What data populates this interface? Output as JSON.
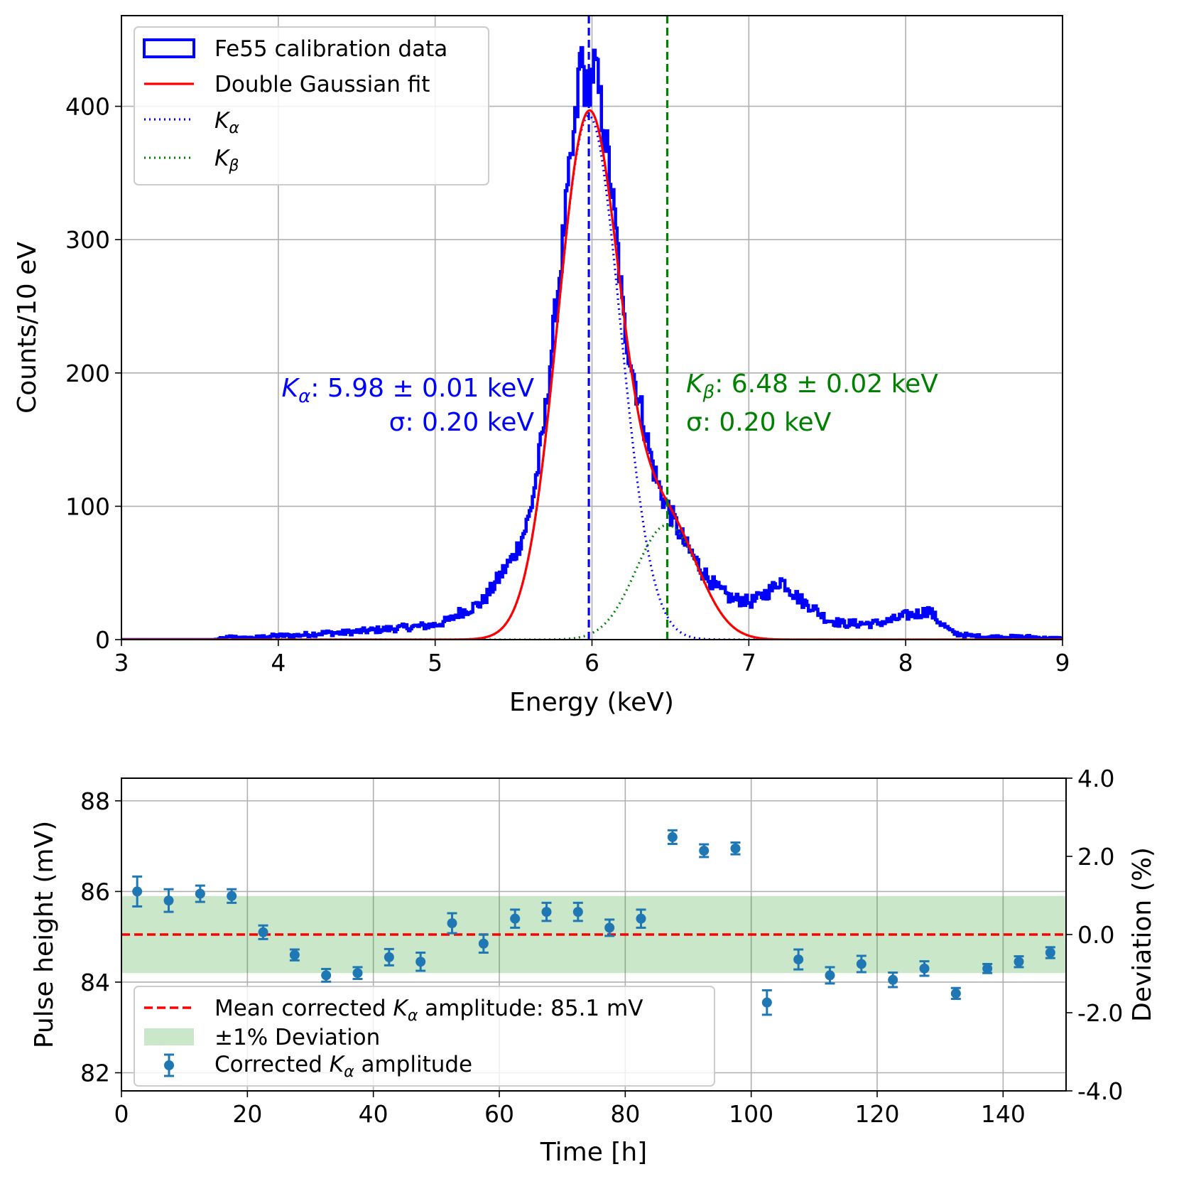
{
  "chart_data": [
    {
      "type": "histogram",
      "title": "",
      "xlabel": "Energy (keV)",
      "ylabel": "Counts/10 eV",
      "xlim": [
        3,
        9
      ],
      "ylim": [
        0,
        468
      ],
      "xticks": [
        3,
        4,
        5,
        6,
        7,
        8,
        9
      ],
      "yticks": [
        0,
        100,
        200,
        300,
        400
      ],
      "grid": true,
      "legend": {
        "position": "top-left",
        "entries": [
          {
            "label": "Fe55 calibration data",
            "style": "box",
            "color": "#0000ff"
          },
          {
            "label": "Double Gaussian fit",
            "style": "solid",
            "color": "#ff0000"
          },
          {
            "label": "K",
            "sub": "α",
            "style": "dotted",
            "color": "#0000ff"
          },
          {
            "label": "K",
            "sub": "β",
            "style": "dotted",
            "color": "#008000"
          }
        ]
      },
      "histogram_envelope": [
        [
          3.6,
          0
        ],
        [
          3.7,
          2
        ],
        [
          3.8,
          1
        ],
        [
          3.9,
          2
        ],
        [
          4.0,
          3
        ],
        [
          4.1,
          3
        ],
        [
          4.2,
          4
        ],
        [
          4.3,
          5
        ],
        [
          4.4,
          5
        ],
        [
          4.5,
          6
        ],
        [
          4.6,
          7
        ],
        [
          4.7,
          8
        ],
        [
          4.8,
          9
        ],
        [
          4.9,
          10
        ],
        [
          5.0,
          11
        ],
        [
          5.1,
          15
        ],
        [
          5.15,
          20
        ],
        [
          5.2,
          22
        ],
        [
          5.25,
          25
        ],
        [
          5.3,
          28
        ],
        [
          5.35,
          36
        ],
        [
          5.4,
          45
        ],
        [
          5.45,
          54
        ],
        [
          5.5,
          62
        ],
        [
          5.55,
          75
        ],
        [
          5.6,
          92
        ],
        [
          5.65,
          125
        ],
        [
          5.7,
          165
        ],
        [
          5.75,
          225
        ],
        [
          5.8,
          280
        ],
        [
          5.85,
          340
        ],
        [
          5.9,
          390
        ],
        [
          5.93,
          445
        ],
        [
          5.96,
          410
        ],
        [
          5.99,
          420
        ],
        [
          6.02,
          432
        ],
        [
          6.05,
          405
        ],
        [
          6.08,
          380
        ],
        [
          6.11,
          355
        ],
        [
          6.14,
          320
        ],
        [
          6.17,
          285
        ],
        [
          6.2,
          240
        ],
        [
          6.24,
          215
        ],
        [
          6.28,
          190
        ],
        [
          6.32,
          170
        ],
        [
          6.36,
          145
        ],
        [
          6.4,
          125
        ],
        [
          6.44,
          110
        ],
        [
          6.48,
          100
        ],
        [
          6.52,
          90
        ],
        [
          6.56,
          80
        ],
        [
          6.6,
          70
        ],
        [
          6.65,
          62
        ],
        [
          6.7,
          52
        ],
        [
          6.75,
          45
        ],
        [
          6.8,
          38
        ],
        [
          6.85,
          34
        ],
        [
          6.9,
          30
        ],
        [
          6.95,
          30
        ],
        [
          7.0,
          28
        ],
        [
          7.05,
          30
        ],
        [
          7.1,
          34
        ],
        [
          7.15,
          38
        ],
        [
          7.2,
          45
        ],
        [
          7.25,
          40
        ],
        [
          7.3,
          33
        ],
        [
          7.35,
          28
        ],
        [
          7.4,
          25
        ],
        [
          7.45,
          20
        ],
        [
          7.5,
          15
        ],
        [
          7.6,
          12
        ],
        [
          7.7,
          12
        ],
        [
          7.8,
          12
        ],
        [
          7.9,
          14
        ],
        [
          8.0,
          18
        ],
        [
          8.1,
          20
        ],
        [
          8.15,
          22
        ],
        [
          8.2,
          15
        ],
        [
          8.3,
          5
        ],
        [
          8.4,
          3
        ],
        [
          8.5,
          2
        ],
        [
          8.6,
          2
        ],
        [
          8.7,
          2
        ],
        [
          8.8,
          2
        ],
        [
          8.9,
          1
        ],
        [
          9.0,
          1
        ]
      ],
      "fits": [
        {
          "name": "Kα",
          "mean": 5.98,
          "mean_err": 0.01,
          "sigma": 0.2,
          "amplitude": 393
        },
        {
          "name": "Kβ",
          "mean": 6.48,
          "mean_err": 0.02,
          "sigma": 0.2,
          "amplitude": 86
        }
      ],
      "vlines": [
        {
          "x": 5.98,
          "color": "#0000ff",
          "style": "dashed"
        },
        {
          "x": 6.48,
          "color": "#008000",
          "style": "dashed"
        }
      ],
      "annotations": [
        {
          "prefix": "K",
          "sub": "α",
          "text": ": 5.98 ± 0.01 keV",
          "line2": "σ: 0.20 keV",
          "color": "#0000ff",
          "anchor": "right"
        },
        {
          "prefix": "K",
          "sub": "β",
          "text": ": 6.48 ± 0.02 keV",
          "line2": "σ: 0.20 keV",
          "color": "#008000",
          "anchor": "left"
        }
      ]
    },
    {
      "type": "scatter",
      "title": "",
      "xlabel": "Time [h]",
      "ylabel": "Pulse height (mV)",
      "ylabel_right": "Deviation (%)",
      "xlim": [
        0,
        150
      ],
      "ylim": [
        81.6,
        88.5
      ],
      "xticks": [
        0,
        20,
        40,
        60,
        80,
        100,
        120,
        140
      ],
      "yticks": [
        82,
        84,
        86,
        88
      ],
      "yticks_right": [
        "4.0",
        "2.0",
        "0.0",
        "-2.0",
        "-4.0"
      ],
      "grid": true,
      "mean_line": {
        "value": 85.05,
        "label_prefix": "Mean corrected ",
        "label_sub": "α",
        "label_suffix": " amplitude: 85.1 mV",
        "color": "#ff0000"
      },
      "band": {
        "low": 84.2,
        "high": 85.9,
        "label": "±1% Deviation",
        "color": "#2ca02c"
      },
      "series": [
        {
          "name": "Corrected Kα amplitude",
          "label_prefix": "Corrected ",
          "label_sub": "α",
          "label_suffix": " amplitude",
          "color": "#1f77b4",
          "x": [
            2.5,
            7.5,
            12.5,
            17.5,
            22.5,
            27.5,
            32.5,
            37.5,
            42.5,
            47.5,
            52.5,
            57.5,
            62.5,
            67.5,
            72.5,
            77.5,
            82.5,
            87.5,
            92.5,
            97.5,
            102.5,
            107.5,
            112.5,
            117.5,
            122.5,
            127.5,
            132.5,
            137.5,
            142.5,
            147.5
          ],
          "y": [
            86.0,
            85.8,
            85.95,
            85.9,
            85.1,
            84.6,
            84.15,
            84.2,
            84.55,
            84.45,
            85.3,
            84.85,
            85.4,
            85.55,
            85.55,
            85.2,
            85.4,
            87.2,
            86.9,
            86.95,
            83.55,
            84.5,
            84.15,
            84.4,
            84.05,
            84.3,
            83.75,
            84.3,
            84.45,
            84.65
          ],
          "yerr": [
            0.33,
            0.25,
            0.18,
            0.15,
            0.15,
            0.12,
            0.14,
            0.13,
            0.18,
            0.2,
            0.22,
            0.2,
            0.2,
            0.2,
            0.2,
            0.18,
            0.2,
            0.15,
            0.14,
            0.13,
            0.27,
            0.22,
            0.18,
            0.18,
            0.16,
            0.16,
            0.12,
            0.1,
            0.12,
            0.12
          ]
        }
      ]
    }
  ]
}
